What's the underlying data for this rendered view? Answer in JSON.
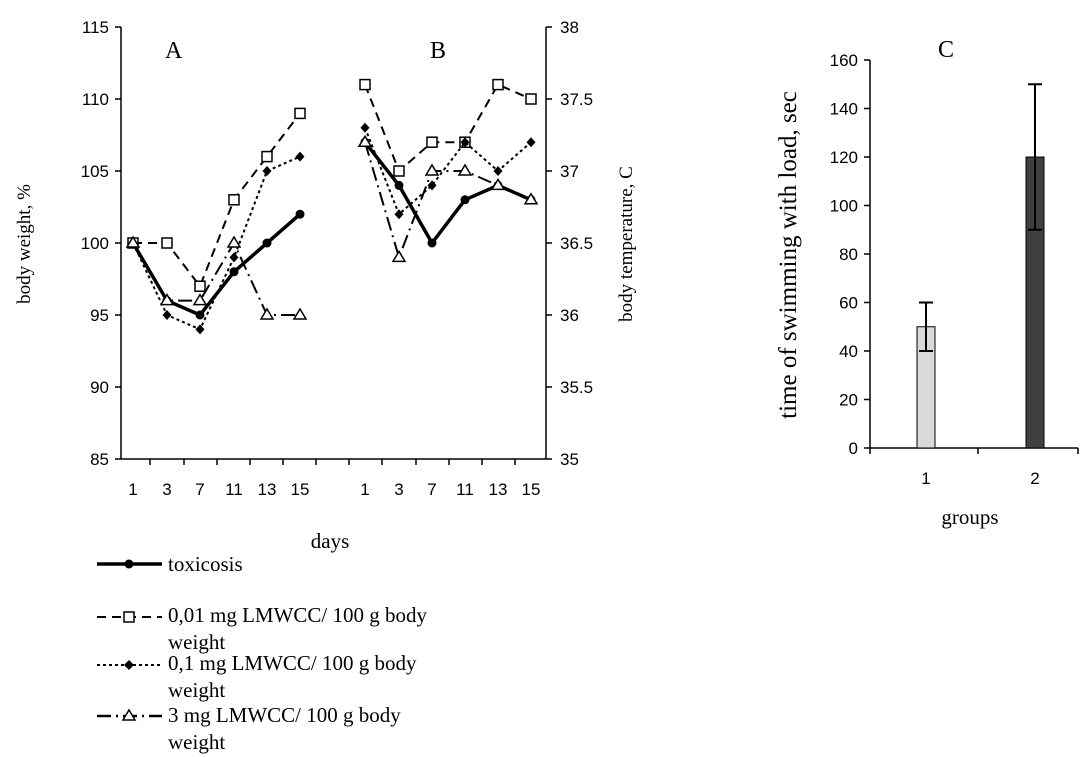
{
  "chart_data": [
    {
      "panel": "A",
      "type": "line",
      "categories": [
        "1",
        "3",
        "7",
        "11",
        "13",
        "15"
      ],
      "ylabel": "body weight, %",
      "ylim": [
        85,
        115
      ],
      "yticks": [
        85,
        90,
        95,
        100,
        105,
        110,
        115
      ],
      "series": [
        {
          "name": "toxicosis",
          "values": [
            100,
            96,
            95,
            98,
            100,
            102
          ]
        },
        {
          "name": "0,01 mg LMWCC/ 100 g body weight",
          "values": [
            100,
            100,
            97,
            103,
            106,
            109
          ]
        },
        {
          "name": "0,1 mg LMWCC/ 100 g body weight",
          "values": [
            100,
            95,
            94,
            99,
            105,
            106
          ]
        },
        {
          "name": "3 mg LMWCC/ 100 g body weight",
          "values": [
            100,
            96,
            96,
            100,
            95,
            95
          ]
        }
      ]
    },
    {
      "panel": "B",
      "type": "line",
      "categories": [
        "1",
        "3",
        "7",
        "11",
        "13",
        "15"
      ],
      "ylabel": "body temperature, C",
      "ylim": [
        35,
        38
      ],
      "yticks": [
        "35",
        "35.5",
        "36",
        "36.5",
        "37",
        "37.5",
        "38"
      ],
      "series": [
        {
          "name": "toxicosis",
          "values": [
            37.2,
            36.9,
            36.5,
            36.8,
            36.9,
            36.8
          ]
        },
        {
          "name": "0,01 mg LMWCC/ 100 g body weight",
          "values": [
            37.6,
            37.0,
            37.2,
            37.2,
            37.6,
            37.5
          ]
        },
        {
          "name": "0,1 mg LMWCC/ 100 g body weight",
          "values": [
            37.3,
            36.7,
            36.9,
            37.2,
            37.0,
            37.2
          ]
        },
        {
          "name": "3 mg LMWCC/ 100 g body weight",
          "values": [
            37.2,
            36.4,
            37.0,
            37.0,
            36.9,
            36.8
          ]
        }
      ]
    },
    {
      "panel": "C",
      "type": "bar",
      "categories": [
        "1",
        "2"
      ],
      "values": [
        50,
        120
      ],
      "errors": [
        10,
        30
      ],
      "colors": [
        "#d9d9d9",
        "#404040"
      ],
      "xlabel": "groups",
      "ylabel": "time of swimming with load, sec",
      "ylim": [
        0,
        160
      ],
      "yticks": [
        0,
        20,
        40,
        60,
        80,
        100,
        120,
        140,
        160
      ]
    }
  ],
  "shared_xlabel": "days",
  "legend": [
    {
      "label": "toxicosis",
      "style": "solid-bold",
      "marker": "filled-circle"
    },
    {
      "label": "0,01 mg LMWCC/ 100 g body weight",
      "style": "dashed",
      "marker": "open-square"
    },
    {
      "label": "0,1 mg LMWCC/ 100 g body weight",
      "style": "dotted",
      "marker": "filled-diamond"
    },
    {
      "label": "3 mg LMWCC/ 100 g body weight",
      "style": "dash-dot",
      "marker": "open-triangle"
    }
  ]
}
